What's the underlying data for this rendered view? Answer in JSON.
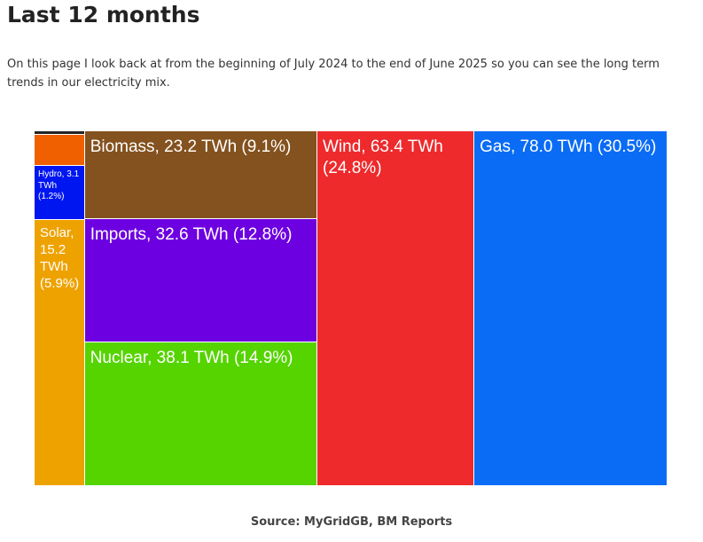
{
  "heading": "Last 12 months",
  "intro": "On this page I look back at from the beginning of July 2024 to the end of June 2025 so you can see the long term trends in our electricity mix.",
  "chart_data": {
    "type": "treemap",
    "categories": [
      "Gas",
      "Wind",
      "Nuclear",
      "Imports",
      "Biomass",
      "Solar",
      "Hydro",
      null,
      null
    ],
    "values": [
      78.0,
      63.4,
      38.1,
      32.6,
      23.2,
      15.2,
      3.1,
      1.8,
      0.2
    ],
    "value_labels": [
      "Gas, 78.0 TWh (30.5%)",
      "Wind, 63.4 TWh (24.8%)",
      "Nuclear, 38.1 TWh (14.9%)",
      "Imports, 32.6 TWh (12.8%)",
      "Biomass, 23.2 TWh (9.1%)",
      "Solar, 15.2 TWh (5.9%)",
      "Hydro, 3.1 TWh (1.2%)",
      null,
      null
    ],
    "colors": [
      "#0a6cf5",
      "#ee2a2c",
      "#55d400",
      "#6d00e0",
      "#84521e",
      "#eea200",
      "#0016f0",
      "#f06000",
      "#222222"
    ]
  },
  "source": "Source: MyGridGB, BM Reports"
}
